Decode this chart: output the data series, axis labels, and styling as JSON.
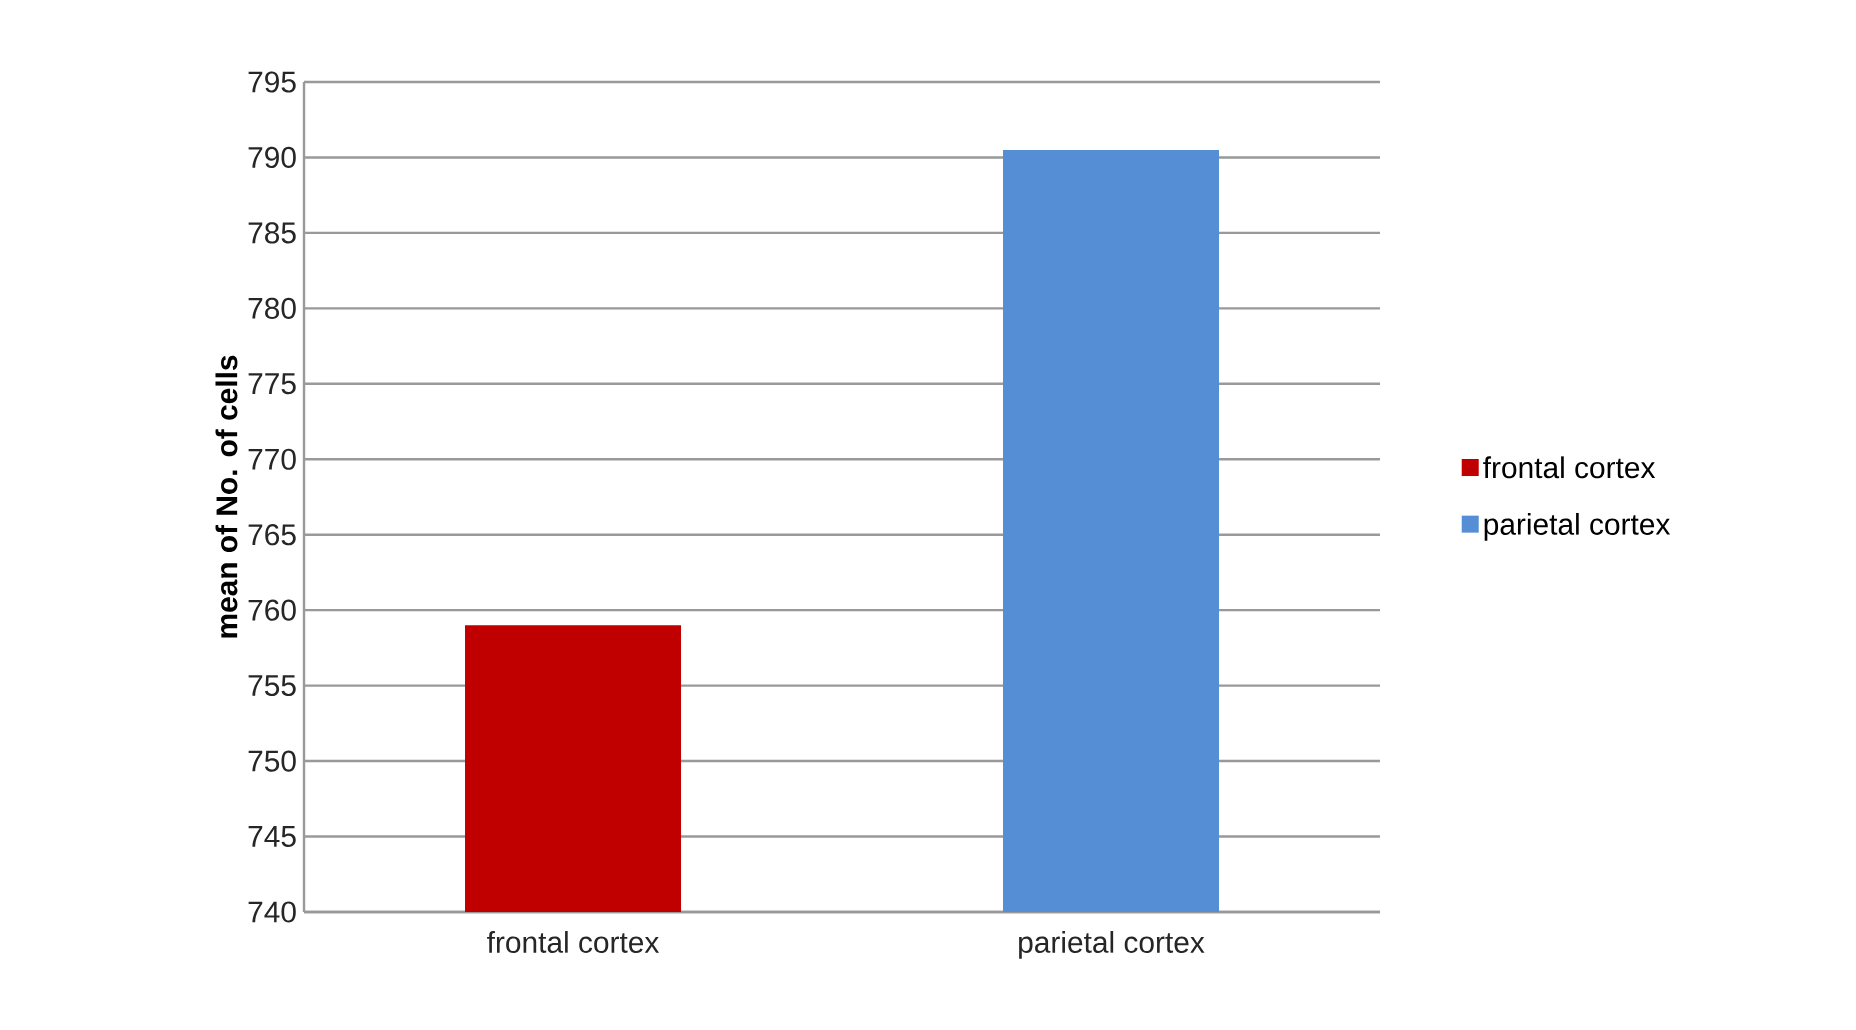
{
  "chart_data": {
    "type": "bar",
    "ylabel": "mean of No. of cells",
    "categories": [
      "frontal cortex",
      "parietal cortex"
    ],
    "series": [
      {
        "name": "frontal cortex",
        "color": "#c00000",
        "values": [
          759,
          null
        ]
      },
      {
        "name": "parietal cortex",
        "color": "#558ed5",
        "values": [
          null,
          790.5
        ]
      }
    ],
    "ylim": [
      740,
      795
    ],
    "yticks": [
      740,
      745,
      750,
      755,
      760,
      765,
      770,
      775,
      780,
      785,
      790,
      795
    ],
    "grid": "y",
    "legend": "right"
  }
}
